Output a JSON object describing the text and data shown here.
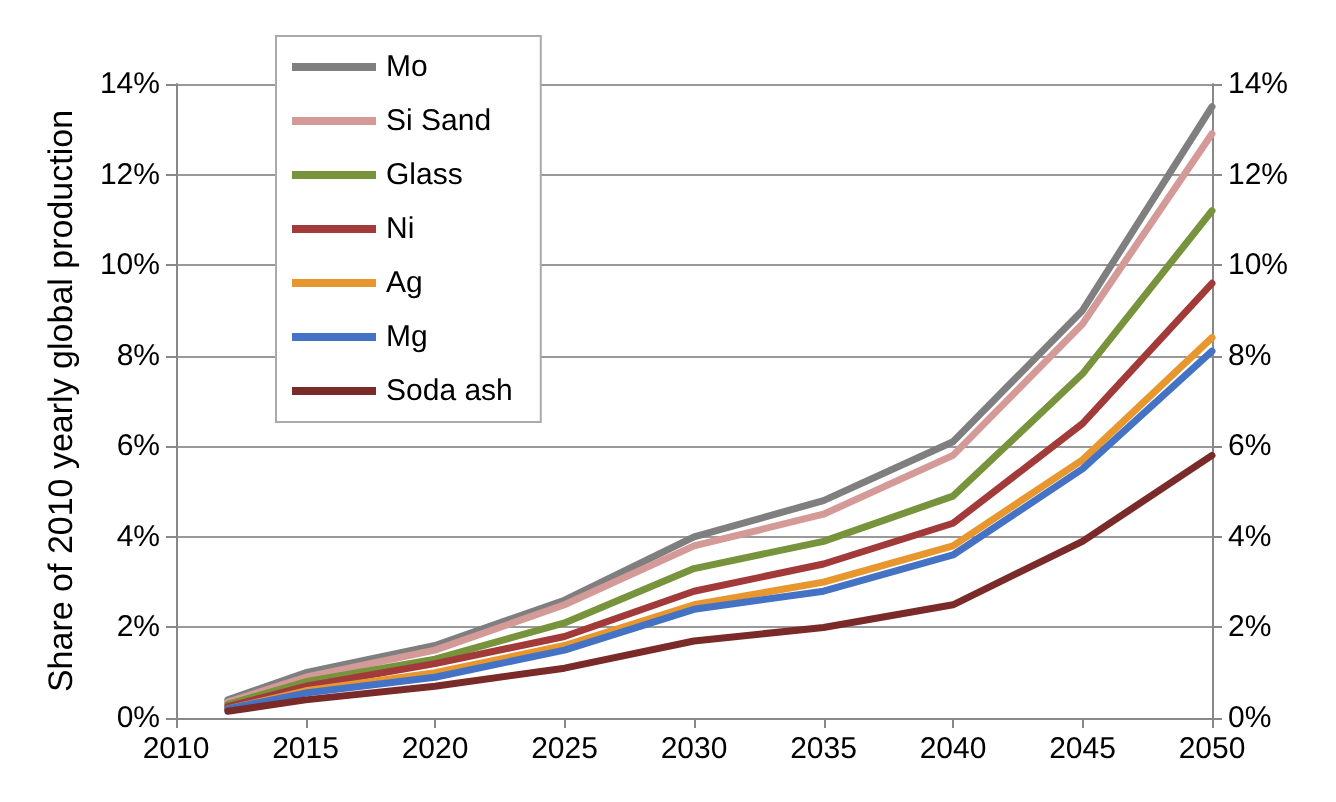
{
  "chart_data": {
    "type": "line",
    "ylabel": "Share of 2010 yearly global production",
    "x": [
      2012,
      2015,
      2020,
      2025,
      2030,
      2035,
      2040,
      2045,
      2050
    ],
    "xlim": [
      2010,
      2050
    ],
    "xticks": [
      2010,
      2015,
      2020,
      2025,
      2030,
      2035,
      2040,
      2045,
      2050
    ],
    "ylim": [
      0,
      14
    ],
    "yticks": [
      {
        "value": 0,
        "label": "0%"
      },
      {
        "value": 2,
        "label": "2%"
      },
      {
        "value": 4,
        "label": "4%"
      },
      {
        "value": 6,
        "label": "6%"
      },
      {
        "value": 8,
        "label": "8%"
      },
      {
        "value": 10,
        "label": "10%"
      },
      {
        "value": 12,
        "label": "12%"
      },
      {
        "value": 14,
        "label": "14%"
      }
    ],
    "y2lim": [
      0,
      14
    ],
    "y2ticks": [
      {
        "value": 0,
        "label": "0%"
      },
      {
        "value": 2,
        "label": "2%"
      },
      {
        "value": 4,
        "label": "4%"
      },
      {
        "value": 6,
        "label": "6%"
      },
      {
        "value": 8,
        "label": "8%"
      },
      {
        "value": 10,
        "label": "10%"
      },
      {
        "value": 12,
        "label": "12%"
      },
      {
        "value": 14,
        "label": "14%"
      }
    ],
    "grid": "y",
    "legend": "top left",
    "marker": "none",
    "line_style": "solid",
    "series": [
      {
        "name": "Mo",
        "color": "#7f7f7f",
        "values": [
          0.4,
          1.0,
          1.6,
          2.6,
          4.0,
          4.8,
          6.1,
          9.0,
          13.5
        ]
      },
      {
        "name": "Si Sand",
        "color": "#d49a98",
        "values": [
          0.35,
          0.9,
          1.5,
          2.5,
          3.8,
          4.5,
          5.8,
          8.7,
          12.9
        ]
      },
      {
        "name": "Glass",
        "color": "#77933c",
        "values": [
          0.3,
          0.8,
          1.3,
          2.1,
          3.3,
          3.9,
          4.9,
          7.6,
          11.2
        ]
      },
      {
        "name": "Ni",
        "color": "#a33a3a",
        "values": [
          0.25,
          0.7,
          1.2,
          1.8,
          2.8,
          3.4,
          4.3,
          6.5,
          9.6
        ]
      },
      {
        "name": "Ag",
        "color": "#e8962e",
        "values": [
          0.2,
          0.6,
          1.0,
          1.6,
          2.5,
          3.0,
          3.8,
          5.7,
          8.4
        ]
      },
      {
        "name": "Mg",
        "color": "#4472c4",
        "values": [
          0.2,
          0.55,
          0.9,
          1.5,
          2.4,
          2.8,
          3.6,
          5.5,
          8.1
        ]
      },
      {
        "name": "Soda ash",
        "color": "#7b2a2a",
        "values": [
          0.15,
          0.4,
          0.7,
          1.1,
          1.7,
          2.0,
          2.5,
          3.9,
          5.8
        ]
      }
    ]
  }
}
